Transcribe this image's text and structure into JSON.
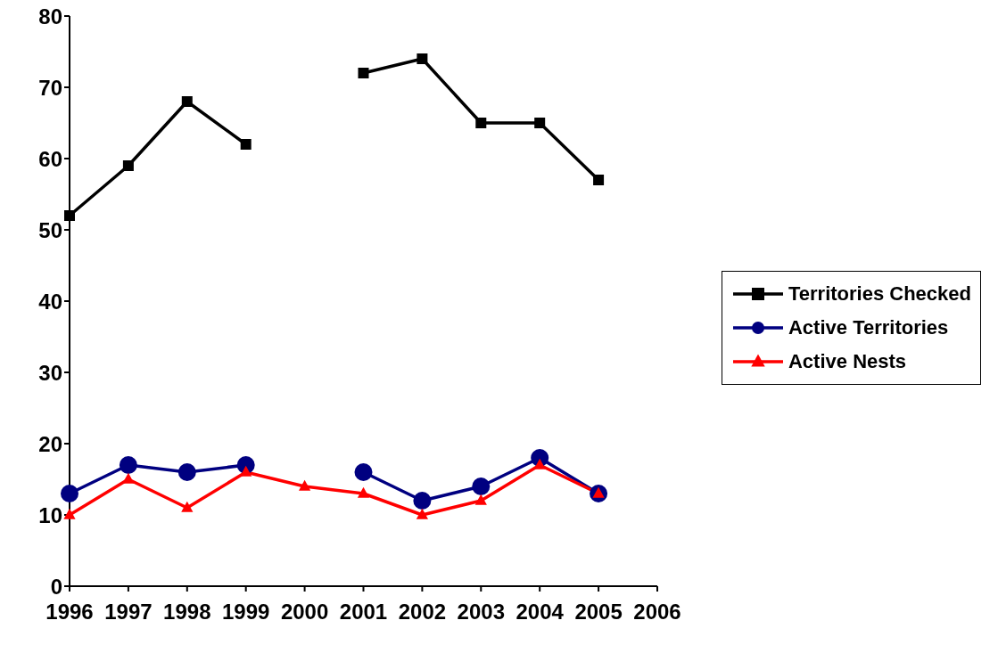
{
  "chart_data": {
    "type": "line",
    "categories": [
      "1996",
      "1997",
      "1998",
      "1999",
      "2000",
      "2001",
      "2002",
      "2003",
      "2004",
      "2005",
      "2006"
    ],
    "series": [
      {
        "name": "Territories Checked",
        "color": "#000000",
        "marker": "square",
        "values": [
          52,
          59,
          68,
          62,
          null,
          72,
          74,
          65,
          65,
          57,
          null
        ]
      },
      {
        "name": "Active Territories",
        "color": "#000080",
        "marker": "circle",
        "values": [
          13,
          17,
          16,
          17,
          null,
          16,
          12,
          14,
          18,
          13,
          null
        ]
      },
      {
        "name": "Active Nests",
        "color": "#ff0000",
        "marker": "triangle",
        "values": [
          10,
          15,
          11,
          16,
          14,
          13,
          10,
          12,
          17,
          13,
          null
        ]
      }
    ],
    "ylim": [
      0,
      80
    ],
    "yticks": [
      0,
      10,
      20,
      30,
      40,
      50,
      60,
      70,
      80
    ],
    "grid": false,
    "legend": "right",
    "line_style": "solid"
  }
}
